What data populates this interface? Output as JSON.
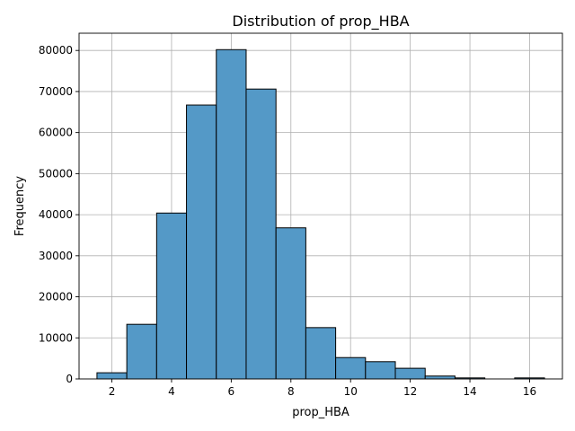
{
  "chart_data": {
    "type": "bar",
    "title": "Distribution of prop_HBA",
    "xlabel": "prop_HBA",
    "ylabel": "Frequency",
    "bin_edges": [
      1.5,
      2.5,
      3.5,
      4.5,
      5.5,
      6.5,
      7.5,
      8.5,
      9.5,
      10.5,
      11.5,
      12.5,
      13.5,
      14.5,
      15.5,
      16.5
    ],
    "values": [
      1500,
      13300,
      40400,
      66700,
      80200,
      70600,
      36800,
      12500,
      5200,
      4200,
      2600,
      700,
      250,
      0,
      250
    ],
    "xlim": [
      0.9,
      17.1
    ],
    "ylim": [
      0,
      84200
    ],
    "xticks": [
      2,
      4,
      6,
      8,
      10,
      12,
      14,
      16
    ],
    "yticks": [
      0,
      10000,
      20000,
      30000,
      40000,
      50000,
      60000,
      70000,
      80000
    ],
    "grid": true,
    "colors": {
      "bar_fill": "#5499c7",
      "bar_edge": "#000000",
      "grid": "#b0b0b0"
    }
  }
}
